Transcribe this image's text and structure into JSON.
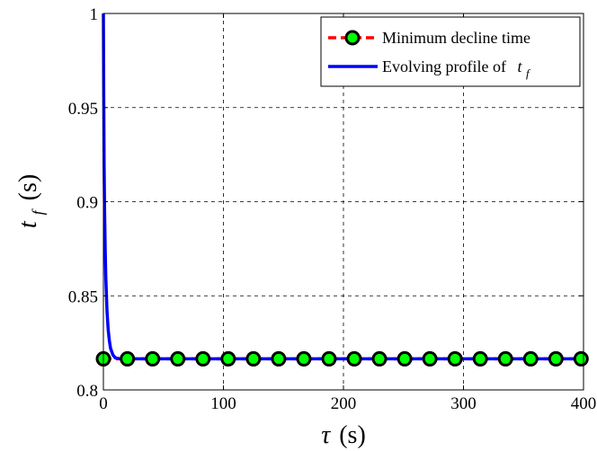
{
  "chart_data": {
    "type": "line",
    "xlabel": {
      "symbol": "τ",
      "unit": "(s)"
    },
    "ylabel": {
      "symbol": "t",
      "subscript": "f",
      "unit": "(s)"
    },
    "xlim": [
      0,
      400
    ],
    "ylim": [
      0.8,
      1.0
    ],
    "xticks": [
      0,
      100,
      200,
      300,
      400
    ],
    "xtick_labels": [
      "0",
      "100",
      "200",
      "300",
      "400"
    ],
    "yticks": [
      0.8,
      0.85,
      0.9,
      0.95,
      1.0
    ],
    "ytick_labels": [
      "0.8",
      "0.85",
      "0.9",
      "0.95",
      "1"
    ],
    "grid": true,
    "legend_position": "top-right",
    "series": [
      {
        "name": "Minimum decline time",
        "style": "dashed-with-markers",
        "color": "#ff0000",
        "marker_fill": "#00ff00",
        "marker_edge": "#000000",
        "x": [
          0,
          400
        ],
        "y": [
          0.8165,
          0.8165
        ],
        "marker_x": [
          0,
          20,
          41,
          62,
          83,
          104,
          125,
          146,
          167,
          188,
          209,
          230,
          251,
          272,
          293,
          314,
          335,
          356,
          377,
          398
        ]
      },
      {
        "name": "Evolving profile of",
        "name_symbol": "t",
        "name_subscript": "f",
        "style": "solid",
        "color": "#0000ff",
        "x": [
          0,
          0.3,
          0.6,
          1,
          1.5,
          2,
          3,
          4,
          5,
          6,
          8,
          10,
          14,
          20,
          400
        ],
        "y": [
          1.0,
          0.955,
          0.92,
          0.895,
          0.875,
          0.86,
          0.842,
          0.832,
          0.826,
          0.822,
          0.8185,
          0.817,
          0.8165,
          0.8165,
          0.8165
        ]
      }
    ]
  }
}
